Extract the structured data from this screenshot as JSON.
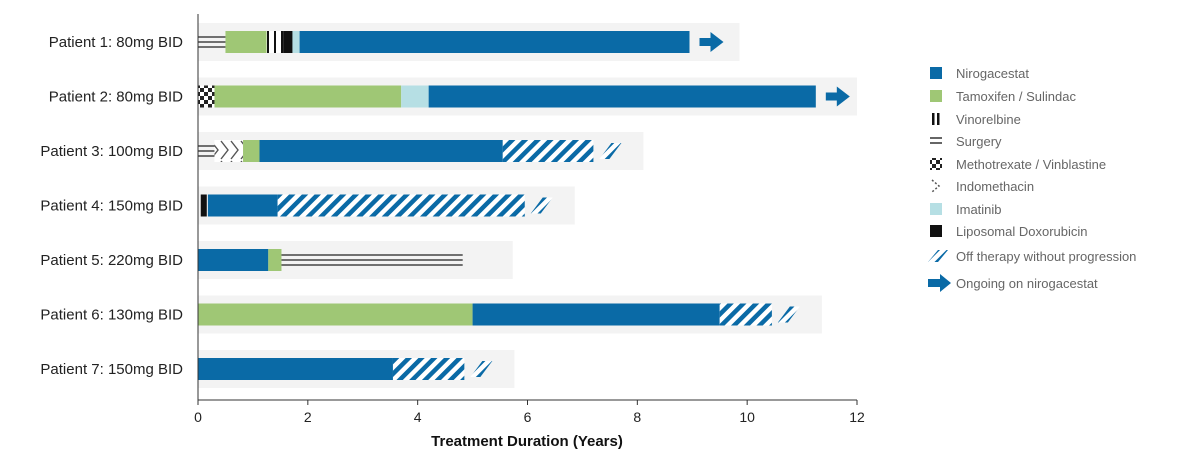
{
  "colors": {
    "nirogacestat": "#0a6aa6",
    "tamoxifen": "#9fc775",
    "imatinib": "#b6dfe4",
    "text": "#222222",
    "legend_text": "#666666",
    "row_band": "#f3f3f3"
  },
  "chart_data": {
    "type": "bar",
    "orientation": "horizontal-swimmer",
    "xlabel": "Treatment Duration (Years)",
    "xlim": [
      0,
      12
    ],
    "xticks": [
      "0",
      "2",
      "4",
      "6",
      "8",
      "10",
      "12"
    ],
    "legend_position": "right",
    "patients": [
      {
        "label": "Patient 1: 80mg BID",
        "segments": [
          {
            "type": "Surgery",
            "start": 0,
            "end": 0.5
          },
          {
            "type": "Tamoxifen / Sulindac",
            "start": 0.5,
            "end": 1.25
          },
          {
            "type": "Vinorelbine",
            "start": 1.25,
            "end": 1.55
          },
          {
            "type": "Liposomal Doxorubicin",
            "start": 1.55,
            "end": 1.72
          },
          {
            "type": "Imatinib",
            "start": 1.72,
            "end": 1.85
          },
          {
            "type": "Nirogacestat",
            "start": 1.85,
            "end": 8.95
          }
        ],
        "ongoing": true
      },
      {
        "label": "Patient 2: 80mg BID",
        "segments": [
          {
            "type": "Methotrexate / Vinblastine",
            "start": 0,
            "end": 0.3
          },
          {
            "type": "Tamoxifen / Sulindac",
            "start": 0.3,
            "end": 3.7
          },
          {
            "type": "Imatinib",
            "start": 3.7,
            "end": 4.2
          },
          {
            "type": "Nirogacestat",
            "start": 4.2,
            "end": 11.25
          }
        ],
        "ongoing": true
      },
      {
        "label": "Patient 3: 100mg BID",
        "segments": [
          {
            "type": "Surgery",
            "start": 0,
            "end": 0.3
          },
          {
            "type": "Indomethacin",
            "start": 0.3,
            "end": 0.82
          },
          {
            "type": "Tamoxifen / Sulindac",
            "start": 0.82,
            "end": 1.12
          },
          {
            "type": "Nirogacestat",
            "start": 1.12,
            "end": 5.55
          },
          {
            "type": "Off therapy without progression",
            "start": 5.55,
            "end": 7.2
          }
        ],
        "ongoing": false
      },
      {
        "label": "Patient 4: 150mg BID",
        "segments": [
          {
            "type": "Liposomal Doxorubicin",
            "start": 0.05,
            "end": 0.16
          },
          {
            "type": "Nirogacestat",
            "start": 0.18,
            "end": 1.45
          },
          {
            "type": "Off therapy without progression",
            "start": 1.45,
            "end": 5.95
          }
        ],
        "ongoing": false
      },
      {
        "label": "Patient 5: 220mg BID",
        "segments": [
          {
            "type": "Nirogacestat",
            "start": 0,
            "end": 1.28
          },
          {
            "type": "Tamoxifen / Sulindac",
            "start": 1.28,
            "end": 1.52
          },
          {
            "type": "Surgery",
            "start": 1.52,
            "end": 4.82
          }
        ],
        "ongoing": false
      },
      {
        "label": "Patient 6: 130mg BID",
        "segments": [
          {
            "type": "Tamoxifen / Sulindac",
            "start": 0,
            "end": 5.0
          },
          {
            "type": "Nirogacestat",
            "start": 5.0,
            "end": 9.5
          },
          {
            "type": "Off therapy without progression",
            "start": 9.5,
            "end": 10.45
          }
        ],
        "ongoing": false
      },
      {
        "label": "Patient 7: 150mg BID",
        "segments": [
          {
            "type": "Nirogacestat",
            "start": 0,
            "end": 3.55
          },
          {
            "type": "Off therapy without progression",
            "start": 3.55,
            "end": 4.85
          }
        ],
        "ongoing": false
      }
    ],
    "legend": [
      {
        "label": "Nirogacestat",
        "icon": "solid-blue-square"
      },
      {
        "label": "Tamoxifen / Sulindac",
        "icon": "solid-green-square"
      },
      {
        "label": "Vinorelbine",
        "icon": "vertical-lines"
      },
      {
        "label": "Surgery",
        "icon": "horizontal-lines"
      },
      {
        "label": "Methotrexate / Vinblastine",
        "icon": "checker-pattern"
      },
      {
        "label": "Indomethacin",
        "icon": "chevron-pattern"
      },
      {
        "label": "Imatinib",
        "icon": "solid-lightblue-square"
      },
      {
        "label": "Liposomal Doxorubicin",
        "icon": "solid-black-square"
      },
      {
        "label": "Off therapy without progression",
        "icon": "hatched-blue"
      },
      {
        "label": "Ongoing on nirogacestat",
        "icon": "right-arrow"
      }
    ]
  }
}
